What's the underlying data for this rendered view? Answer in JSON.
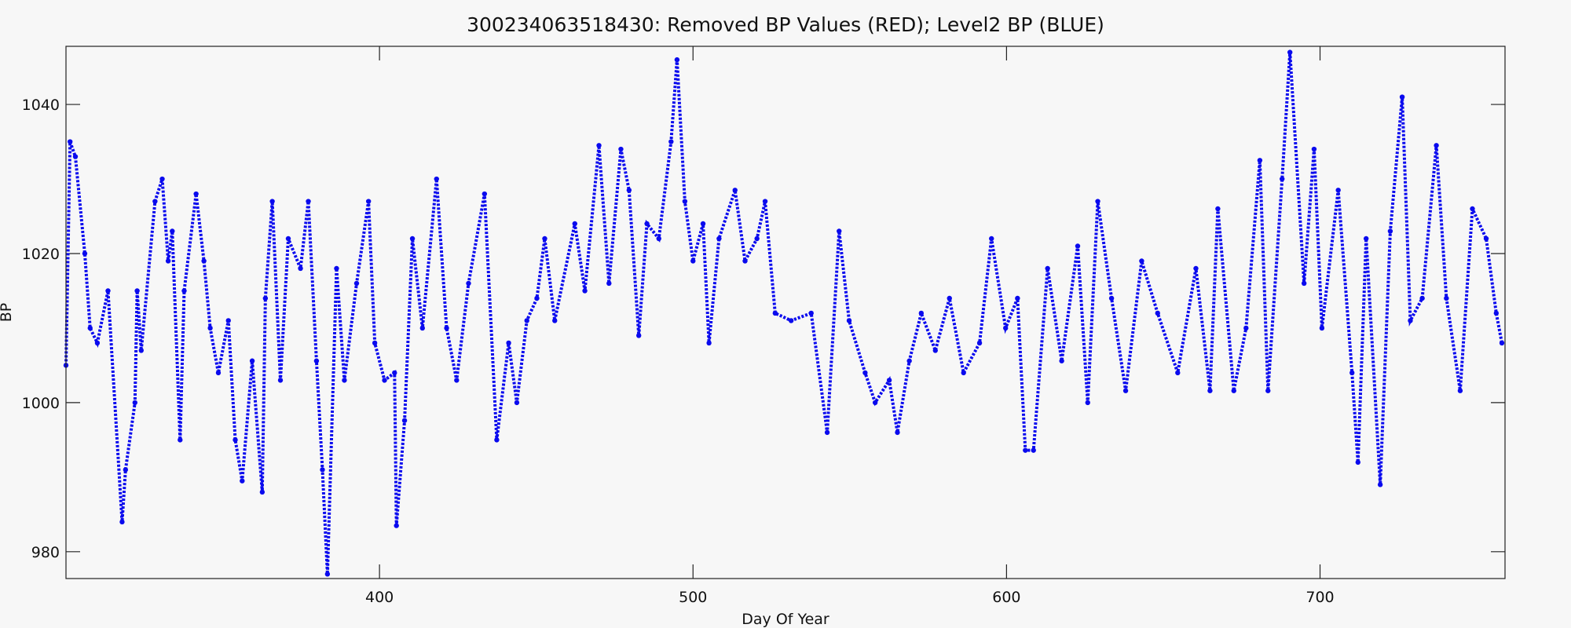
{
  "chart_data": {
    "type": "line",
    "title": "300234063518430: Removed BP Values (RED); Level2 BP (BLUE)",
    "x_label": "Day Of Year",
    "y_label": "BP",
    "xlim": [
      300,
      759
    ],
    "ylim": [
      976.4,
      1047.8
    ],
    "xticks": [
      400,
      500,
      600,
      700
    ],
    "yticks": [
      980,
      1000,
      1020,
      1040
    ],
    "grid": false,
    "series": [
      {
        "name": "Level2 BP",
        "color": "#0a0aee",
        "x": [
          300,
          301.3,
          303,
          306,
          307.7,
          310,
          313.4,
          317.9,
          319,
          322,
          322.7,
          324,
          328.4,
          330.7,
          332.6,
          333.9,
          336.4,
          337.7,
          341.5,
          344,
          346,
          348.6,
          351.8,
          354,
          356.2,
          359.4,
          362.6,
          363.6,
          365.8,
          368.4,
          370.9,
          374.8,
          377.3,
          379.9,
          381.8,
          383.4,
          386.3,
          388.8,
          392.7,
          396.5,
          398.5,
          401.6,
          404.8,
          405.4,
          408,
          410.5,
          413.7,
          418.2,
          421.4,
          424.6,
          428.4,
          433.5,
          437.4,
          441.2,
          443.8,
          447,
          450.2,
          452.7,
          455.9,
          462.3,
          465.5,
          470,
          473.2,
          477,
          479.6,
          482.7,
          485.3,
          489.1,
          493,
          494.9,
          497.4,
          500,
          503.2,
          505.1,
          508.3,
          513.4,
          516.6,
          520.4,
          523,
          526.2,
          531.3,
          537.7,
          542.8,
          546.6,
          549.8,
          554.9,
          558.1,
          562.6,
          565.2,
          569,
          572.8,
          577.3,
          581.8,
          586.3,
          591.4,
          595.2,
          599.7,
          603.5,
          606,
          608.6,
          613.1,
          617.6,
          622.7,
          625.9,
          629.1,
          633.5,
          638,
          643.1,
          648.2,
          654.6,
          660.4,
          664.9,
          667.4,
          672.5,
          676.4,
          680.8,
          683.4,
          687.9,
          690.4,
          694.9,
          698.1,
          700.6,
          705.8,
          710.2,
          712.1,
          714.7,
          719.2,
          722.4,
          726.2,
          728.8,
          732.6,
          737.1,
          740.3,
          744.7,
          748.6,
          753,
          756.2,
          758
        ],
        "values": [
          1005,
          1035,
          1033,
          1020,
          1010,
          1008,
          1015,
          984,
          991,
          1000,
          1015,
          1007,
          1027,
          1030,
          1019,
          1023,
          995,
          1015,
          1028,
          1019,
          1010,
          1004,
          1011,
          995,
          989.5,
          1005.6,
          988,
          1014,
          1027,
          1003,
          1022,
          1018,
          1027,
          1005.6,
          991,
          977,
          1018,
          1003,
          1016,
          1027,
          1008,
          1003,
          1004,
          983.5,
          997.6,
          1022,
          1010,
          1030,
          1010,
          1003,
          1016,
          1028,
          995,
          1008,
          1000,
          1011,
          1014,
          1022,
          1011,
          1024,
          1015,
          1034.5,
          1016,
          1034,
          1028.5,
          1009,
          1024,
          1022,
          1035,
          1046,
          1027,
          1019,
          1024,
          1008,
          1022,
          1028.5,
          1019,
          1022,
          1027,
          1012,
          1011,
          1012,
          996,
          1023,
          1011,
          1004,
          1000,
          1003,
          996,
          1005.6,
          1012,
          1007,
          1014,
          1004,
          1008,
          1022,
          1010,
          1014,
          993.6,
          993.6,
          1018,
          1005.6,
          1021,
          1000,
          1027,
          1014,
          1001.6,
          1019,
          1012,
          1004,
          1018,
          1001.6,
          1026,
          1001.6,
          1010,
          1032.5,
          1001.6,
          1030,
          1047,
          1016,
          1034,
          1010,
          1028.5,
          1004,
          992,
          1022,
          989,
          1023,
          1041,
          1011,
          1014,
          1034.5,
          1014,
          1001.6,
          1026,
          1022,
          1012,
          1008
        ]
      }
    ]
  }
}
